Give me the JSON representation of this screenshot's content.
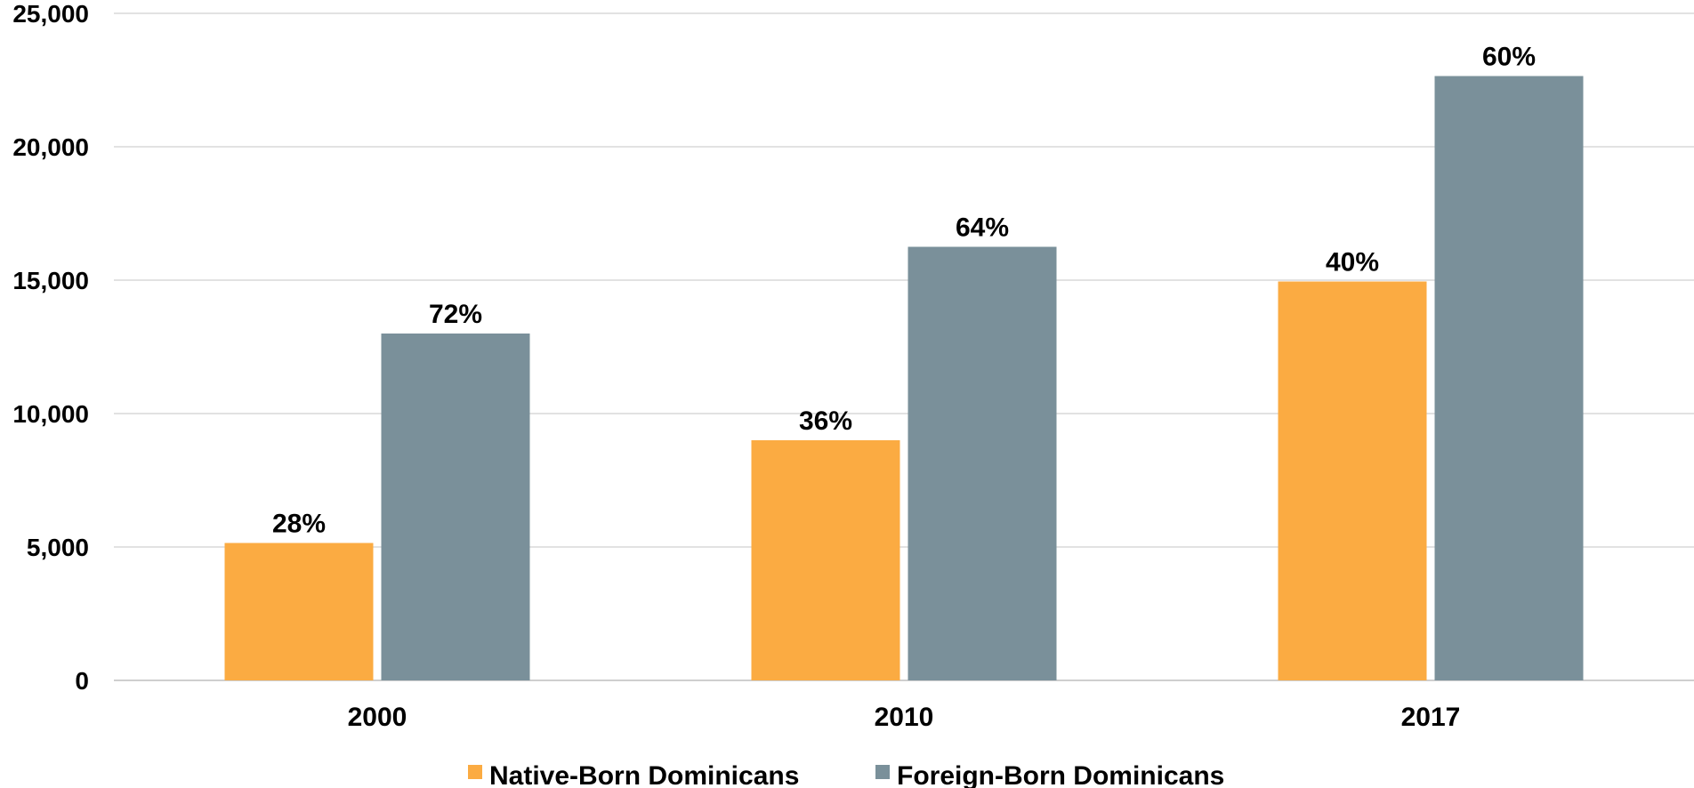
{
  "chart_data": {
    "type": "bar",
    "categories": [
      "2000",
      "2010",
      "2017"
    ],
    "series": [
      {
        "name": "Native-Born Dominicans",
        "color": "#FBAB42",
        "values": [
          5150,
          9000,
          14950
        ],
        "labels": [
          "28%",
          "36%",
          "40%"
        ]
      },
      {
        "name": "Foreign-Born Dominicans",
        "color": "#7A909A",
        "values": [
          13000,
          16250,
          22650
        ],
        "labels": [
          "72%",
          "64%",
          "60%"
        ]
      }
    ],
    "ylim": [
      0,
      25000
    ],
    "yticks": [
      {
        "value": 0,
        "label": "0"
      },
      {
        "value": 5000,
        "label": "5,000"
      },
      {
        "value": 10000,
        "label": "10,000"
      },
      {
        "value": 15000,
        "label": "15,000"
      },
      {
        "value": 20000,
        "label": "20,000"
      },
      {
        "value": 25000,
        "label": "25,000"
      }
    ],
    "grid": true,
    "legend": "bottom-center",
    "title": "",
    "xlabel": "",
    "ylabel": ""
  }
}
